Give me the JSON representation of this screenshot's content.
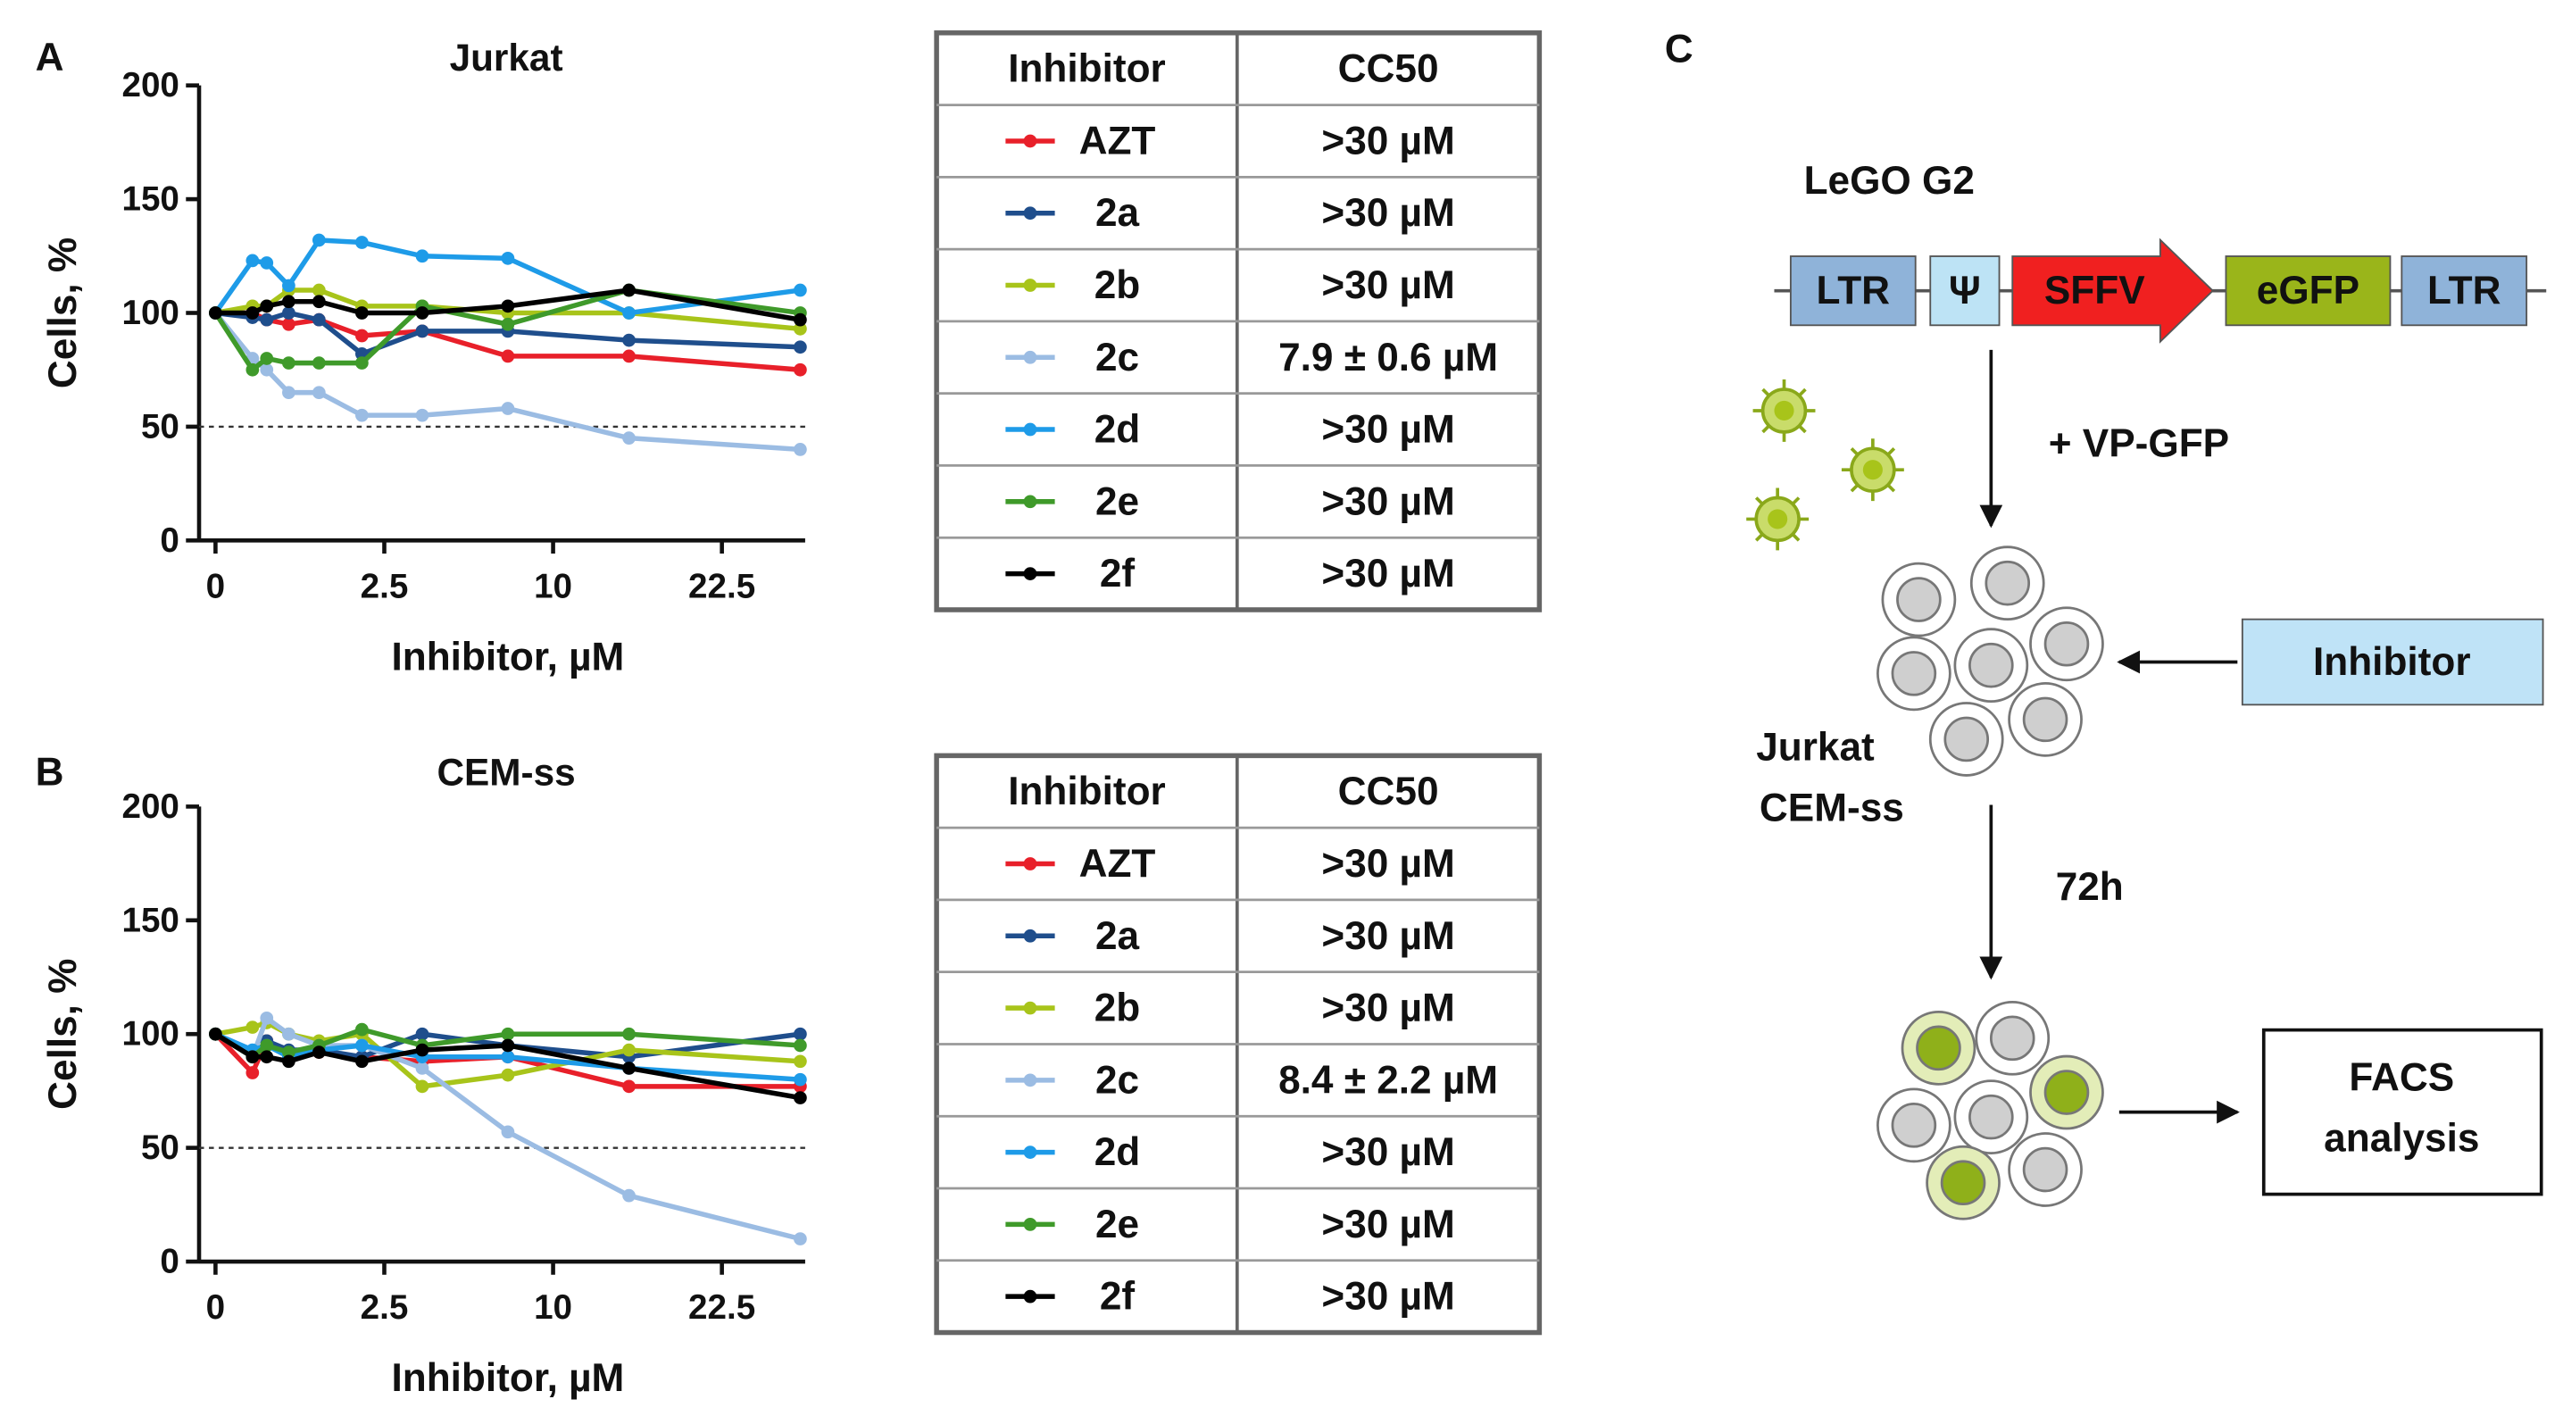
{
  "chart_data": [
    {
      "type": "line",
      "panel": "A",
      "title": "Jurkat",
      "x_label": "Inhibitor, µM",
      "y_label": "Cells, %",
      "x": [
        0,
        0.12,
        0.23,
        0.47,
        0.94,
        1.88,
        3.75,
        7.5,
        15,
        30
      ],
      "xscale": "sqrt",
      "xlim": [
        0,
        30
      ],
      "xticks": [
        0,
        2.5,
        10,
        22.5
      ],
      "ylim": [
        0,
        200
      ],
      "yticks": [
        0,
        50,
        100,
        150,
        200
      ],
      "reference_line": 50,
      "series": [
        {
          "name": "AZT",
          "color": "#e8202a",
          "values": [
            100,
            100,
            97,
            95,
            97,
            90,
            92,
            81,
            81,
            75
          ]
        },
        {
          "name": "2a",
          "color": "#1f4e8c",
          "values": [
            100,
            98,
            97,
            100,
            97,
            82,
            92,
            92,
            88,
            85
          ]
        },
        {
          "name": "2b",
          "color": "#a8c41a",
          "values": [
            100,
            103,
            103,
            110,
            110,
            103,
            103,
            100,
            100,
            93
          ]
        },
        {
          "name": "2c",
          "color": "#9bbce3",
          "values": [
            100,
            80,
            75,
            65,
            65,
            55,
            55,
            58,
            45,
            40
          ]
        },
        {
          "name": "2d",
          "color": "#1e9be8",
          "values": [
            100,
            123,
            122,
            112,
            132,
            131,
            125,
            124,
            100,
            110
          ]
        },
        {
          "name": "2e",
          "color": "#3f9a2a",
          "values": [
            100,
            75,
            80,
            78,
            78,
            78,
            103,
            95,
            110,
            100
          ]
        },
        {
          "name": "2f",
          "color": "#000000",
          "values": [
            100,
            100,
            103,
            105,
            105,
            100,
            100,
            103,
            110,
            97
          ]
        }
      ],
      "table_header": [
        "Inhibitor",
        "CC50"
      ],
      "cc50": [
        ">30 µM",
        ">30 µM",
        ">30 µM",
        "7.9 ± 0.6 µM",
        ">30 µM",
        ">30 µM",
        ">30 µM"
      ]
    },
    {
      "type": "line",
      "panel": "B",
      "title": "CEM-ss",
      "x_label": "Inhibitor, µM",
      "y_label": "Cells, %",
      "x": [
        0,
        0.12,
        0.23,
        0.47,
        0.94,
        1.88,
        3.75,
        7.5,
        15,
        30
      ],
      "xscale": "sqrt",
      "xlim": [
        0,
        30
      ],
      "xticks": [
        0,
        2.5,
        10,
        22.5
      ],
      "ylim": [
        0,
        200
      ],
      "yticks": [
        0,
        50,
        100,
        150,
        200
      ],
      "reference_line": 50,
      "series": [
        {
          "name": "AZT",
          "color": "#e8202a",
          "values": [
            100,
            83,
            97,
            90,
            92,
            90,
            88,
            90,
            77,
            77
          ]
        },
        {
          "name": "2a",
          "color": "#1f4e8c",
          "values": [
            100,
            90,
            97,
            93,
            93,
            90,
            100,
            95,
            90,
            100
          ]
        },
        {
          "name": "2b",
          "color": "#a8c41a",
          "values": [
            100,
            103,
            105,
            100,
            97,
            100,
            77,
            82,
            93,
            88
          ]
        },
        {
          "name": "2c",
          "color": "#9bbce3",
          "values": [
            100,
            90,
            107,
            100,
            95,
            95,
            85,
            57,
            29,
            10
          ]
        },
        {
          "name": "2d",
          "color": "#1e9be8",
          "values": [
            100,
            93,
            95,
            90,
            93,
            95,
            90,
            90,
            85,
            80
          ]
        },
        {
          "name": "2e",
          "color": "#3f9a2a",
          "values": [
            100,
            90,
            95,
            92,
            95,
            102,
            95,
            100,
            100,
            95
          ]
        },
        {
          "name": "2f",
          "color": "#000000",
          "values": [
            100,
            90,
            90,
            88,
            92,
            88,
            93,
            95,
            85,
            72
          ]
        }
      ],
      "table_header": [
        "Inhibitor",
        "CC50"
      ],
      "cc50": [
        ">30 µM",
        ">30 µM",
        ">30 µM",
        "8.4 ± 2.2 µM",
        ">30 µM",
        ">30 µM",
        ">30 µM"
      ]
    }
  ],
  "diagram": {
    "panel": "C",
    "title": "LeGO G2",
    "elements": [
      "LTR",
      "Ψ",
      "SFFV",
      "eGFP",
      "LTR"
    ],
    "virus_step": "+ VP-GFP",
    "cells": [
      "Jurkat",
      "CEM-ss"
    ],
    "inhibitor": "Inhibitor",
    "time": "72h",
    "readout": [
      "FACS",
      "analysis"
    ]
  }
}
